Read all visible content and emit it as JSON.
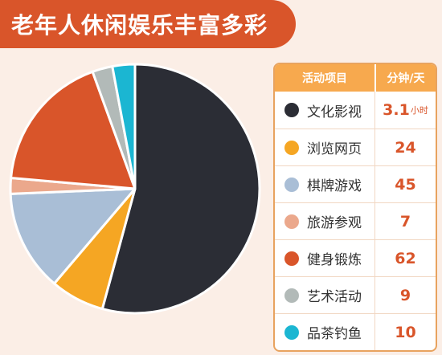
{
  "title": "老年人休闲娱乐丰富多彩",
  "legend": {
    "header_item": "活动项目",
    "header_unit": "分钟/天"
  },
  "chart_data": {
    "type": "pie",
    "title": "老年人休闲娱乐丰富多彩",
    "slices": [
      {
        "label": "文化影视",
        "display": "3.1",
        "unit": "小时",
        "value_minutes": 186,
        "color": "#2b2d35"
      },
      {
        "label": "浏览网页",
        "display": "24",
        "unit": "",
        "value_minutes": 24,
        "color": "#f5a623"
      },
      {
        "label": "棋牌游戏",
        "display": "45",
        "unit": "",
        "value_minutes": 45,
        "color": "#a9bed6"
      },
      {
        "label": "旅游参观",
        "display": "7",
        "unit": "",
        "value_minutes": 7,
        "color": "#eba88c"
      },
      {
        "label": "健身锻炼",
        "display": "62",
        "unit": "",
        "value_minutes": 62,
        "color": "#d9552a"
      },
      {
        "label": "艺术活动",
        "display": "9",
        "unit": "",
        "value_minutes": 9,
        "color": "#b2bab8"
      },
      {
        "label": "品茶钓鱼",
        "display": "10",
        "unit": "",
        "value_minutes": 10,
        "color": "#1bb6d2"
      }
    ]
  }
}
